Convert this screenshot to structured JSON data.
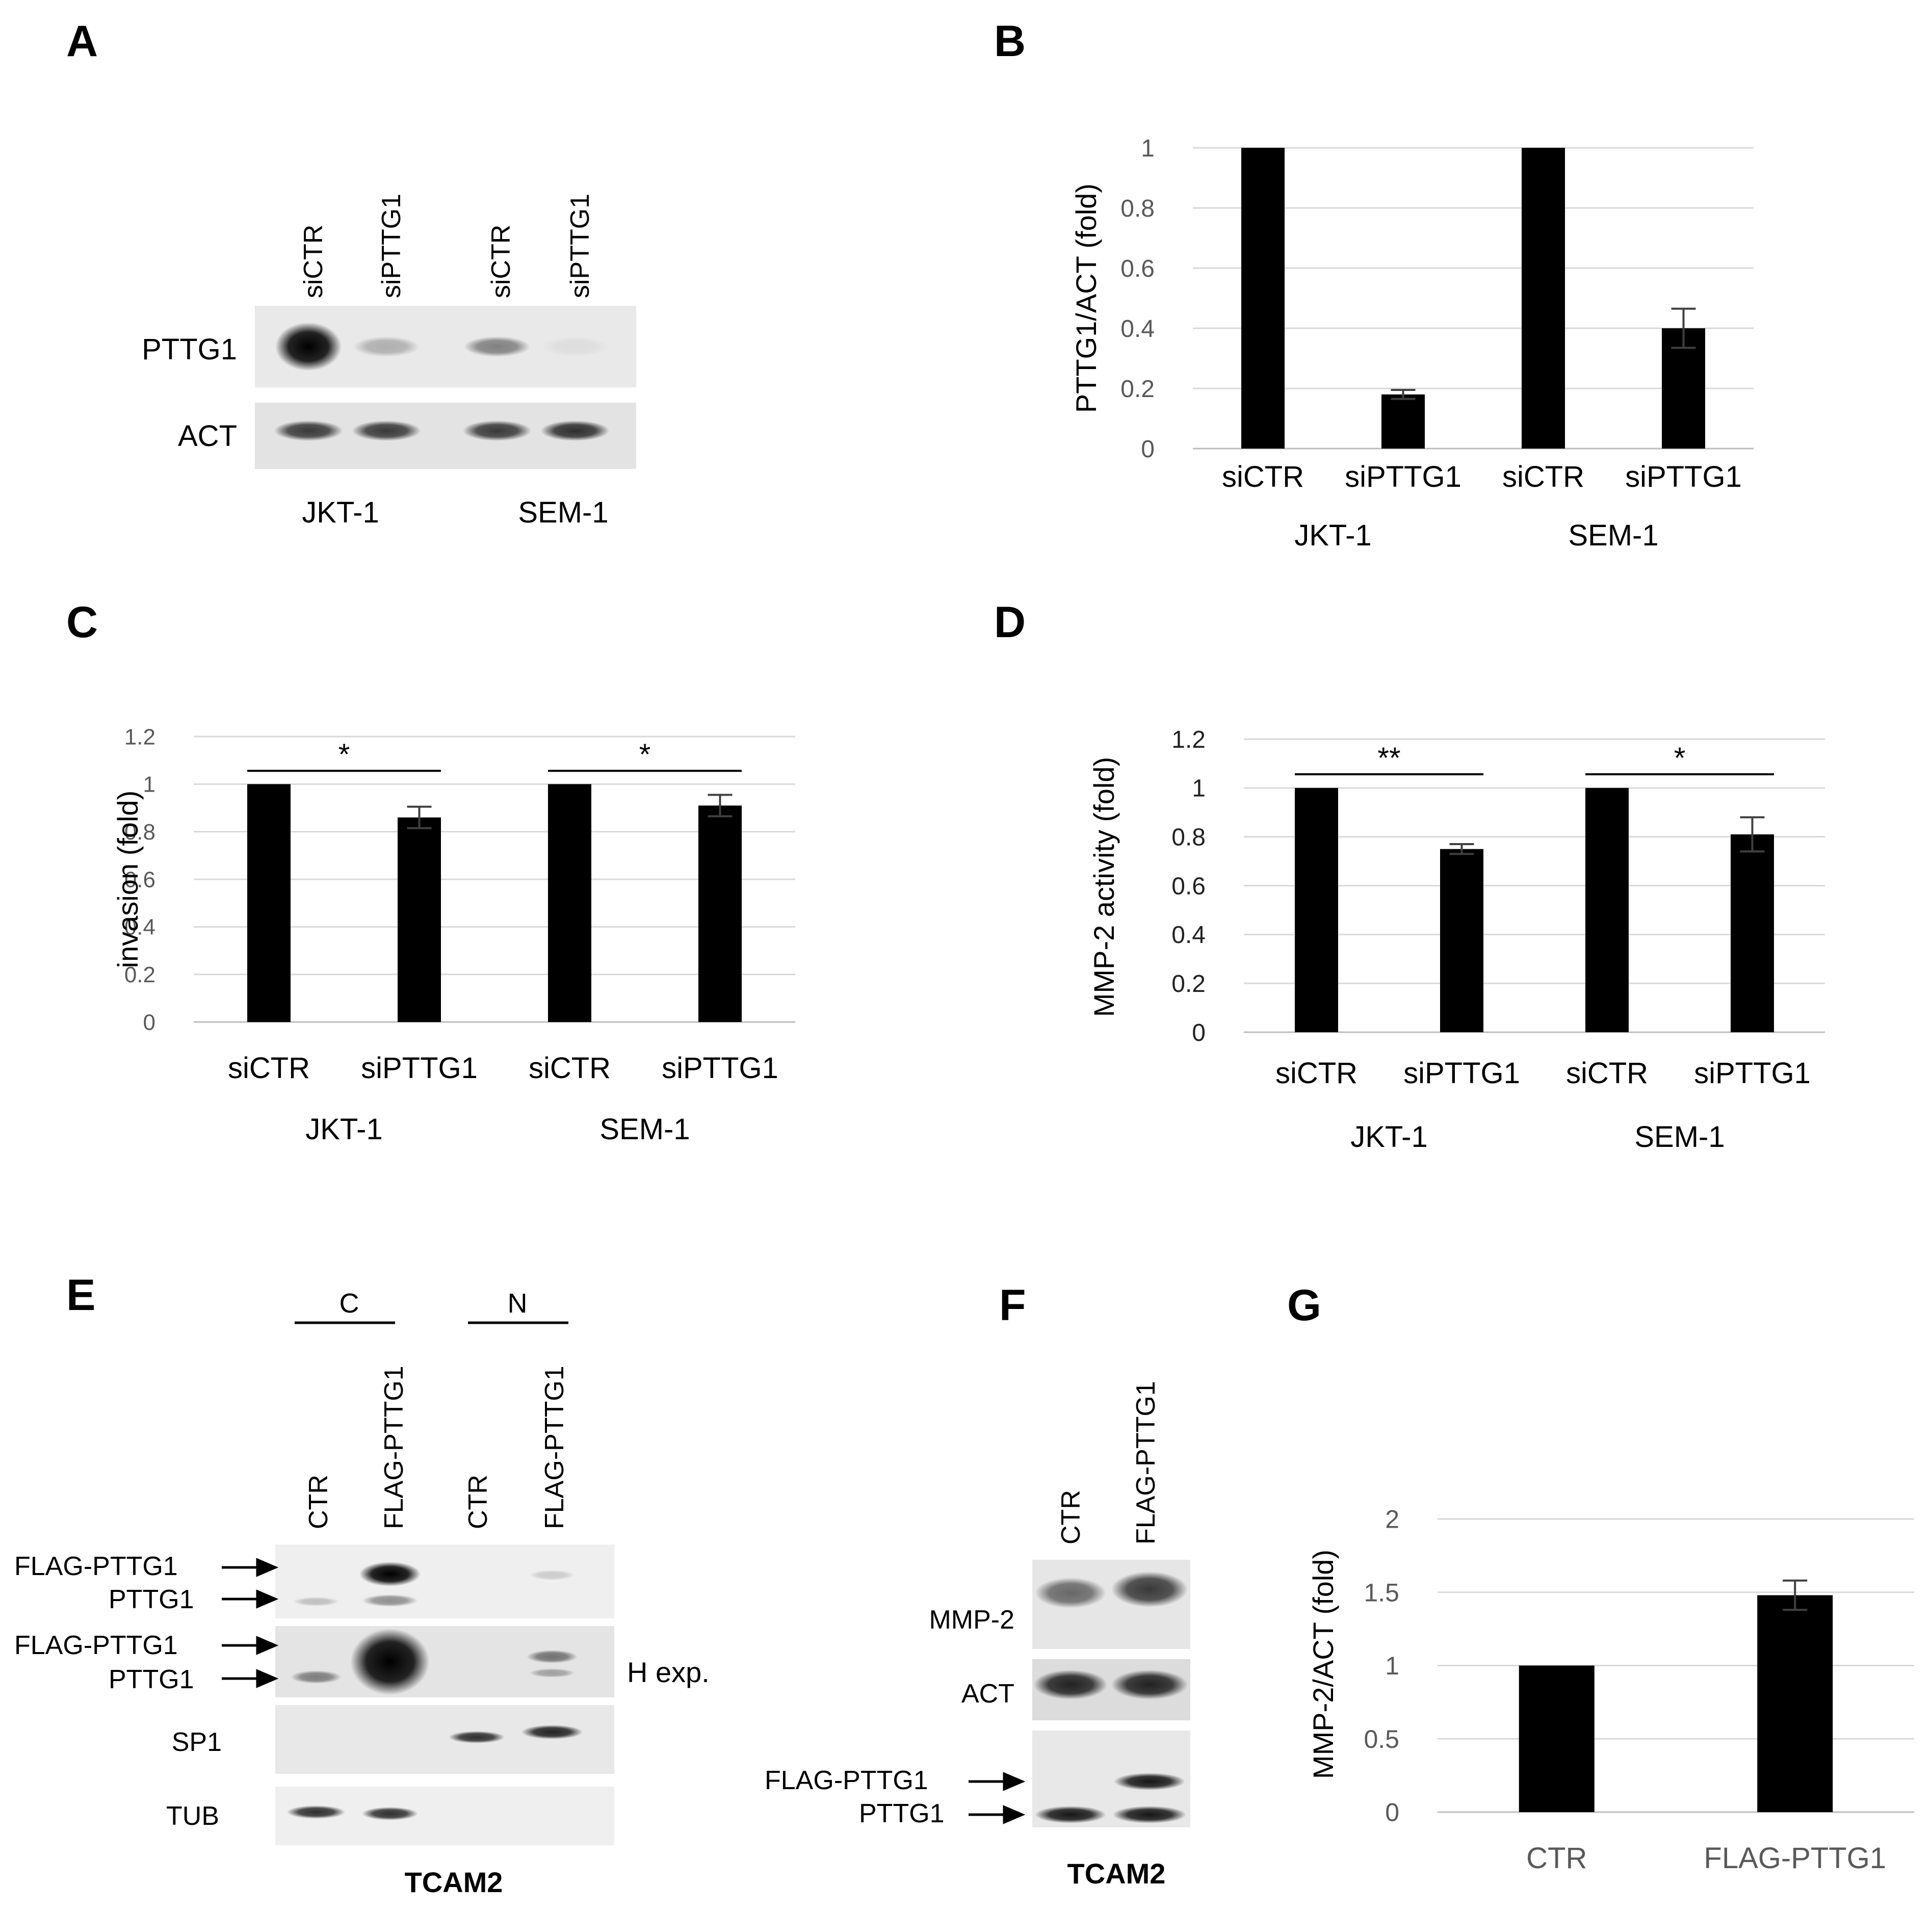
{
  "panels": {
    "A": {
      "letter": "A",
      "lanes": [
        "siCTR",
        "siPTTG1",
        "siCTR",
        "siPTTG1"
      ],
      "rows": [
        "PTTG1",
        "ACT"
      ],
      "groups": [
        "JKT-1",
        "SEM-1"
      ],
      "bands": {
        "PTTG1": [
          1.0,
          0.25,
          0.45,
          0.05
        ],
        "ACT": [
          0.75,
          0.75,
          0.75,
          0.8
        ]
      }
    },
    "E": {
      "letter": "E",
      "fractions": [
        "C",
        "N"
      ],
      "lanes": [
        "CTR",
        "FLAG-PTTG1",
        "CTR",
        "FLAG-PTTG1"
      ],
      "row1_arrows": [
        "FLAG-PTTG1",
        "PTTG1"
      ],
      "row2_arrows": [
        "FLAG-PTTG1",
        "PTTG1"
      ],
      "h_exp": "H exp.",
      "rows": [
        "SP1",
        "TUB"
      ],
      "cell_line": "TCAM2"
    },
    "F": {
      "letter": "F",
      "lanes": [
        "CTR",
        "FLAG-PTTG1"
      ],
      "rows": [
        "MMP-2",
        "ACT"
      ],
      "arrows": [
        "FLAG-PTTG1",
        "PTTG1"
      ],
      "cell_line": "TCAM2"
    }
  },
  "chart_data": [
    {
      "panel": "B",
      "type": "bar",
      "categories": [
        "siCTR",
        "siPTTG1",
        "siCTR",
        "siPTTG1"
      ],
      "groups": [
        "JKT-1",
        "SEM-1"
      ],
      "values": [
        1.0,
        0.18,
        1.0,
        0.4
      ],
      "errors": [
        0,
        0.015,
        0,
        0.065
      ],
      "ylabel": "PTTG1/ACT  (fold)",
      "ylim": [
        0,
        1
      ],
      "yticks": [
        "0",
        "0.2",
        "0.4",
        "0.6",
        "0.8",
        "1"
      ],
      "significance": [],
      "grid": true
    },
    {
      "panel": "C",
      "type": "bar",
      "categories": [
        "siCTR",
        "siPTTG1",
        "siCTR",
        "siPTTG1"
      ],
      "groups": [
        "JKT-1",
        "SEM-1"
      ],
      "values": [
        1.0,
        0.86,
        1.0,
        0.91
      ],
      "errors": [
        0,
        0.045,
        0,
        0.045
      ],
      "ylabel": "invasion (fold)",
      "ylim": [
        0,
        1.2
      ],
      "yticks": [
        "0",
        "0.2",
        "0.4",
        "0.6",
        "0.8",
        "1",
        "1.2"
      ],
      "significance": [
        {
          "from": 0,
          "to": 1,
          "label": "*"
        },
        {
          "from": 2,
          "to": 3,
          "label": "*"
        }
      ],
      "grid": true
    },
    {
      "panel": "D",
      "type": "bar",
      "categories": [
        "siCTR",
        "siPTTG1",
        "siCTR",
        "siPTTG1"
      ],
      "groups": [
        "JKT-1",
        "SEM-1"
      ],
      "values": [
        1.0,
        0.75,
        1.0,
        0.81
      ],
      "errors": [
        0,
        0.02,
        0,
        0.07
      ],
      "ylabel": "MMP-2 activity  (fold)",
      "ylim": [
        0,
        1.2
      ],
      "yticks": [
        "0",
        "0.2",
        "0.4",
        "0.6",
        "0.8",
        "1",
        "1.2"
      ],
      "significance": [
        {
          "from": 0,
          "to": 1,
          "label": "**"
        },
        {
          "from": 2,
          "to": 3,
          "label": "*"
        }
      ],
      "grid": true
    },
    {
      "panel": "G",
      "type": "bar",
      "categories": [
        "CTR",
        "FLAG-PTTG1"
      ],
      "groups": [],
      "values": [
        1.0,
        1.48
      ],
      "errors": [
        0,
        0.1
      ],
      "ylabel": "MMP-2/ACT   (fold)",
      "ylim": [
        0,
        2
      ],
      "yticks": [
        "0",
        "0.5",
        "1",
        "1.5",
        "2"
      ],
      "significance": [],
      "grid": true
    }
  ]
}
